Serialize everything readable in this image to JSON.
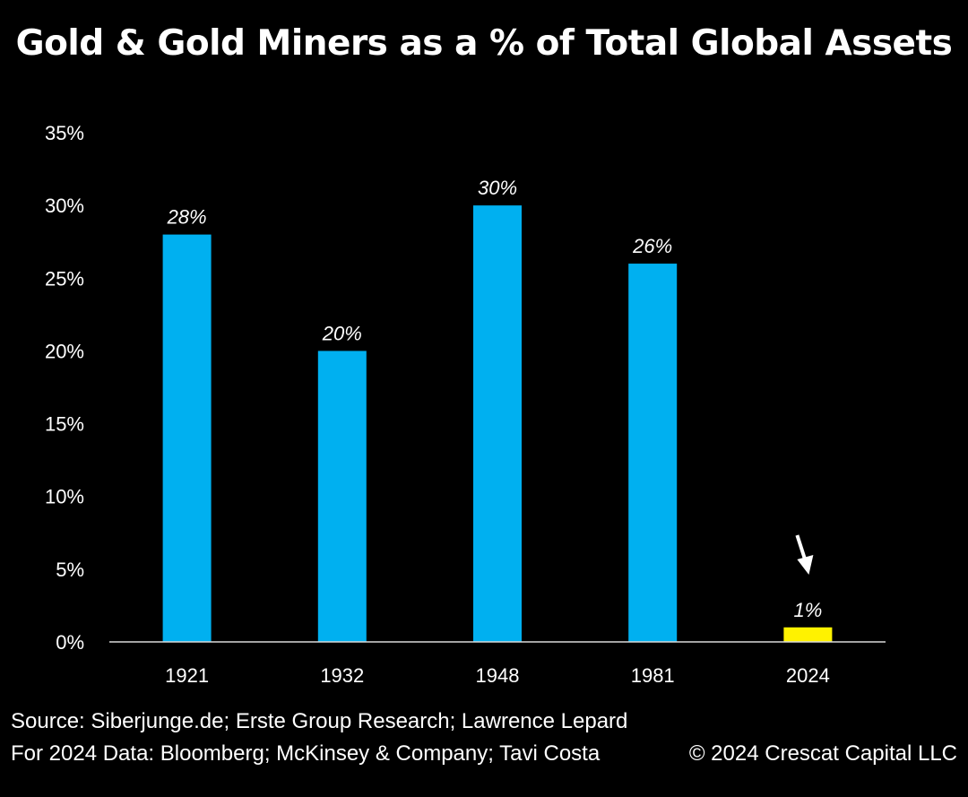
{
  "title": "Gold & Gold Miners as a % of Total Global Assets",
  "footer": {
    "source_line1": "Source: Siberjunge.de; Erste Group Research; Lawrence Lepard",
    "source_line2": "For 2024 Data: Bloomberg; McKinsey & Company; Tavi Costa",
    "copyright": "© 2024 Crescat Capital LLC"
  },
  "colors": {
    "background": "#000000",
    "bar": "#00B0F0",
    "highlight_bar": "#FFF200",
    "text": "#FFFFFF"
  },
  "icons": {
    "annotation": "down-arrow-icon"
  },
  "chart_data": {
    "type": "bar",
    "title": "Gold & Gold Miners as a % of Total Global Assets",
    "categories": [
      "1921",
      "1932",
      "1948",
      "1981",
      "2024"
    ],
    "values": [
      28,
      20,
      30,
      26,
      1
    ],
    "data_labels": [
      "28%",
      "20%",
      "30%",
      "26%",
      "1%"
    ],
    "highlight_index": 4,
    "ylim": [
      0,
      35
    ],
    "yticks": [
      0,
      5,
      10,
      15,
      20,
      25,
      30,
      35
    ],
    "ytick_labels": [
      "0%",
      "5%",
      "10%",
      "15%",
      "20%",
      "25%",
      "30%",
      "35%"
    ],
    "xlabel": "",
    "ylabel": "",
    "grid": false,
    "legend": "none"
  }
}
